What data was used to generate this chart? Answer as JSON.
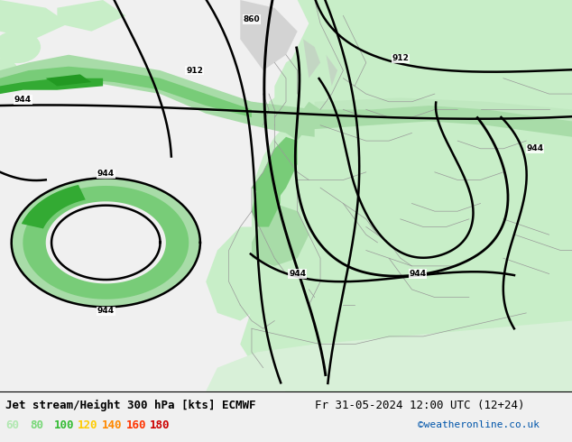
{
  "title_left": "Jet stream/Height 300 hPa [kts] ECMWF",
  "title_right": "Fr 31-05-2024 12:00 UTC (12+24)",
  "credit": "©weatheronline.co.uk",
  "legend_values": [
    60,
    80,
    100,
    120,
    140,
    160,
    180
  ],
  "legend_colors": [
    "#b0e8b0",
    "#78d878",
    "#33bb33",
    "#ffcc00",
    "#ff8800",
    "#ff3300",
    "#cc0000"
  ],
  "bg_color": "#f0f0f0",
  "ocean_color": "#f0f0f0",
  "land_color": "#c8eec8",
  "jet_light": "#a8dca8",
  "jet_medium": "#78cc78",
  "jet_dark": "#33aa33",
  "contour_color": "#000000",
  "title_fontsize": 9,
  "legend_fontsize": 9,
  "credit_color": "#0055aa",
  "border_color": "#999999"
}
